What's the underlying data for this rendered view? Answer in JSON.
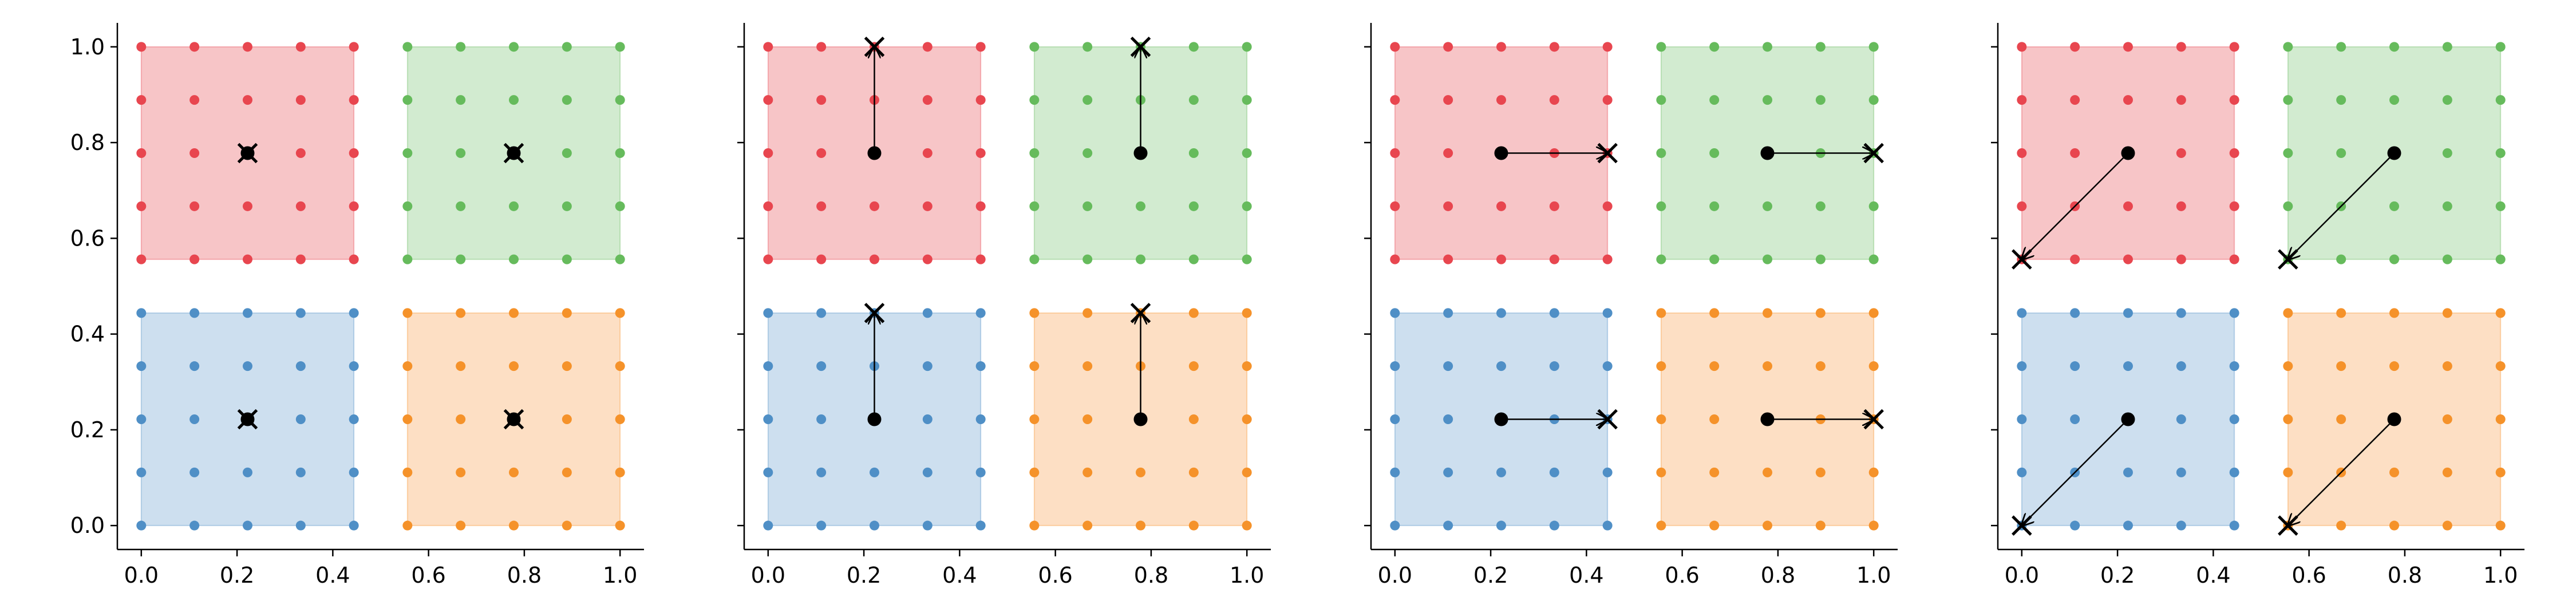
{
  "chart_data": {
    "type": "scatter",
    "title": "",
    "xlabel": "",
    "ylabel": "",
    "xlim": [
      -0.05,
      1.05
    ],
    "ylim": [
      -0.05,
      1.05
    ],
    "xticks": [
      "0.0",
      "0.2",
      "0.4",
      "0.6",
      "0.8",
      "1.0"
    ],
    "yticks": [
      "0.0",
      "0.2",
      "0.4",
      "0.6",
      "0.8",
      "1.0"
    ],
    "show_ytick_labels": [
      true,
      false,
      false,
      false
    ],
    "grid": false,
    "legend": "none",
    "quadrants": [
      {
        "color": "#e8464f",
        "fill": "#f7c5c7",
        "x": [
          0,
          0.444
        ],
        "y": [
          0.556,
          1.0
        ]
      },
      {
        "color": "#66bb5c",
        "fill": "#d2ebd0",
        "x": [
          0.556,
          1.0
        ],
        "y": [
          0.556,
          1.0
        ]
      },
      {
        "color": "#4f8fc6",
        "fill": "#cddfef",
        "x": [
          0,
          0.444
        ],
        "y": [
          0,
          0.444
        ]
      },
      {
        "color": "#f5922a",
        "fill": "#fddfc4",
        "x": [
          0.556,
          1.0
        ],
        "y": [
          0,
          0.444
        ]
      }
    ],
    "grid_points_per_axis": 5,
    "panels": [
      {
        "moves": [
          {
            "from": [
              0.222,
              0.778
            ],
            "to": [
              0.222,
              0.778
            ]
          },
          {
            "from": [
              0.778,
              0.778
            ],
            "to": [
              0.778,
              0.778
            ]
          },
          {
            "from": [
              0.222,
              0.222
            ],
            "to": [
              0.222,
              0.222
            ]
          },
          {
            "from": [
              0.778,
              0.222
            ],
            "to": [
              0.778,
              0.222
            ]
          }
        ]
      },
      {
        "moves": [
          {
            "from": [
              0.222,
              0.778
            ],
            "to": [
              0.222,
              1.0
            ]
          },
          {
            "from": [
              0.778,
              0.778
            ],
            "to": [
              0.778,
              1.0
            ]
          },
          {
            "from": [
              0.222,
              0.222
            ],
            "to": [
              0.222,
              0.444
            ]
          },
          {
            "from": [
              0.778,
              0.222
            ],
            "to": [
              0.778,
              0.444
            ]
          }
        ]
      },
      {
        "moves": [
          {
            "from": [
              0.222,
              0.778
            ],
            "to": [
              0.444,
              0.778
            ]
          },
          {
            "from": [
              0.778,
              0.778
            ],
            "to": [
              1.0,
              0.778
            ]
          },
          {
            "from": [
              0.222,
              0.222
            ],
            "to": [
              0.444,
              0.222
            ]
          },
          {
            "from": [
              0.778,
              0.222
            ],
            "to": [
              1.0,
              0.222
            ]
          }
        ]
      },
      {
        "moves": [
          {
            "from": [
              0.222,
              0.778
            ],
            "to": [
              0.0,
              0.556
            ]
          },
          {
            "from": [
              0.778,
              0.778
            ],
            "to": [
              0.556,
              0.556
            ]
          },
          {
            "from": [
              0.222,
              0.222
            ],
            "to": [
              0.0,
              0.0
            ]
          },
          {
            "from": [
              0.778,
              0.222
            ],
            "to": [
              0.556,
              0.0
            ]
          }
        ]
      }
    ]
  }
}
